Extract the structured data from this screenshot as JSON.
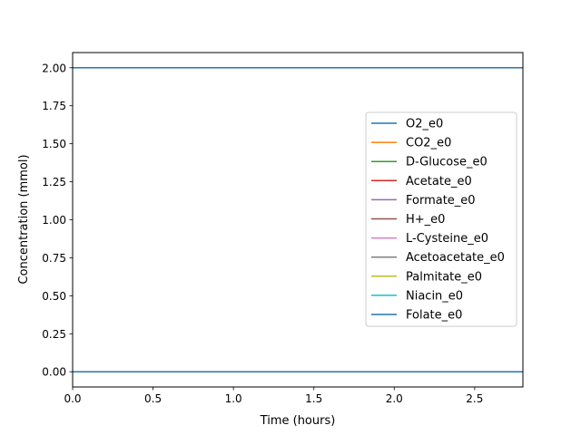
{
  "chart_data": {
    "type": "line",
    "title": "",
    "xlabel": "Time (hours)",
    "ylabel": "Concentration (mmol)",
    "xlim": [
      0.0,
      2.8
    ],
    "ylim": [
      -0.1,
      2.1
    ],
    "xticks": [
      0.0,
      0.5,
      1.0,
      1.5,
      2.0,
      2.5
    ],
    "xtick_labels": [
      "0.0",
      "0.5",
      "1.0",
      "1.5",
      "2.0",
      "2.5"
    ],
    "yticks": [
      0.0,
      0.25,
      0.5,
      0.75,
      1.0,
      1.25,
      1.5,
      1.75,
      2.0
    ],
    "ytick_labels": [
      "0.00",
      "0.25",
      "0.50",
      "0.75",
      "1.00",
      "1.25",
      "1.50",
      "1.75",
      "2.00"
    ],
    "grid": false,
    "legend_position": "center-right",
    "x": [
      0.0,
      2.8
    ],
    "series": [
      {
        "name": "O2_e0",
        "color": "#1f77b4",
        "values": [
          2.0,
          2.0
        ]
      },
      {
        "name": "CO2_e0",
        "color": "#ff7f0e",
        "values": [
          0.0,
          0.0
        ]
      },
      {
        "name": "D-Glucose_e0",
        "color": "#2ca02c",
        "values": [
          0.0,
          0.0
        ]
      },
      {
        "name": "Acetate_e0",
        "color": "#d62728",
        "values": [
          0.0,
          0.0
        ]
      },
      {
        "name": "Formate_e0",
        "color": "#9467bd",
        "values": [
          0.0,
          0.0
        ]
      },
      {
        "name": "H+_e0",
        "color": "#8c564b",
        "values": [
          0.0,
          0.0
        ]
      },
      {
        "name": "L-Cysteine_e0",
        "color": "#e377c2",
        "values": [
          0.0,
          0.0
        ]
      },
      {
        "name": "Acetoacetate_e0",
        "color": "#7f7f7f",
        "values": [
          0.0,
          0.0
        ]
      },
      {
        "name": "Palmitate_e0",
        "color": "#bcbd22",
        "values": [
          0.0,
          0.0
        ]
      },
      {
        "name": "Niacin_e0",
        "color": "#17becf",
        "values": [
          0.0,
          0.0
        ]
      },
      {
        "name": "Folate_e0",
        "color": "#1f77b4",
        "values": [
          0.0,
          0.0
        ]
      }
    ]
  }
}
